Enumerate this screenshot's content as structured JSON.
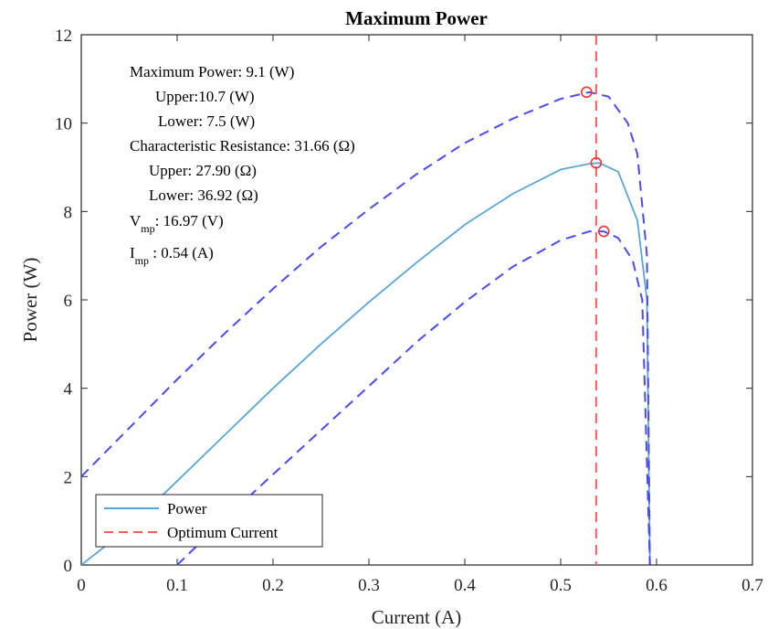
{
  "chart_data": {
    "type": "line",
    "title": "Maximum Power",
    "xlabel": "Current (A)",
    "ylabel": "Power (W)",
    "xlim": [
      0,
      0.7
    ],
    "ylim": [
      0,
      12
    ],
    "xticks": [
      "0",
      "0.1",
      "0.2",
      "0.3",
      "0.4",
      "0.5",
      "0.6",
      "0.7"
    ],
    "yticks": [
      "0",
      "2",
      "4",
      "6",
      "8",
      "10",
      "12"
    ],
    "grid": false,
    "legend_position": "bottom-left",
    "legend": [
      {
        "label": "Power",
        "style": "solid",
        "color": "#5aa6d6"
      },
      {
        "label": "Optimum Current",
        "style": "dashed",
        "color": "#ff5c5c"
      }
    ],
    "colors": {
      "power": "#5aa6d6",
      "bounds": "#4b4bf2",
      "optimum": "#ff5c5c",
      "markers": "#ff3030"
    },
    "series": [
      {
        "name": "Power",
        "style": "solid",
        "x": [
          0,
          0.05,
          0.1,
          0.15,
          0.2,
          0.25,
          0.3,
          0.35,
          0.4,
          0.45,
          0.5,
          0.53,
          0.54,
          0.56,
          0.58,
          0.59,
          0.593
        ],
        "y": [
          0,
          0.85,
          1.9,
          2.95,
          4.0,
          5.0,
          5.95,
          6.85,
          7.7,
          8.4,
          8.95,
          9.08,
          9.1,
          8.9,
          7.8,
          6.0,
          0
        ]
      },
      {
        "style": "dashed",
        "x": [
          0,
          0.05,
          0.1,
          0.15,
          0.2,
          0.25,
          0.3,
          0.35,
          0.4,
          0.45,
          0.5,
          0.53,
          0.55,
          0.57,
          0.58,
          0.59,
          0.593
        ],
        "y": [
          2.0,
          3.1,
          4.2,
          5.25,
          6.25,
          7.2,
          8.05,
          8.85,
          9.55,
          10.1,
          10.55,
          10.7,
          10.6,
          10.0,
          9.3,
          7.0,
          0
        ]
      },
      {
        "style": "dashed",
        "x": [
          0.1,
          0.15,
          0.2,
          0.25,
          0.3,
          0.35,
          0.4,
          0.45,
          0.5,
          0.53,
          0.545,
          0.56,
          0.575,
          0.585,
          0.593
        ],
        "y": [
          0,
          1.05,
          2.05,
          3.05,
          4.05,
          5.05,
          5.95,
          6.75,
          7.35,
          7.55,
          7.55,
          7.4,
          6.9,
          6.0,
          0
        ]
      }
    ],
    "markers": [
      {
        "x": 0.527,
        "y": 10.7
      },
      {
        "x": 0.537,
        "y": 9.1
      },
      {
        "x": 0.545,
        "y": 7.55
      }
    ],
    "optimum_current": 0.537,
    "annotations": {
      "max_power": "Maximum Power: 9.1 (W)",
      "max_upper": "Upper:10.7 (W)",
      "max_lower": "Lower: 7.5 (W)",
      "char_res": "Characteristic Resistance: 31.66 (Ω)",
      "res_upper": "Upper: 27.90 (Ω)",
      "res_lower": "Lower: 36.92 (Ω)",
      "vmp_main": "V",
      "vmp_sub": "mp",
      "vmp_value": ": 16.97 (V)",
      "imp_main": "I",
      "imp_sub": "mp",
      "imp_value": " : 0.54 (A)"
    }
  }
}
